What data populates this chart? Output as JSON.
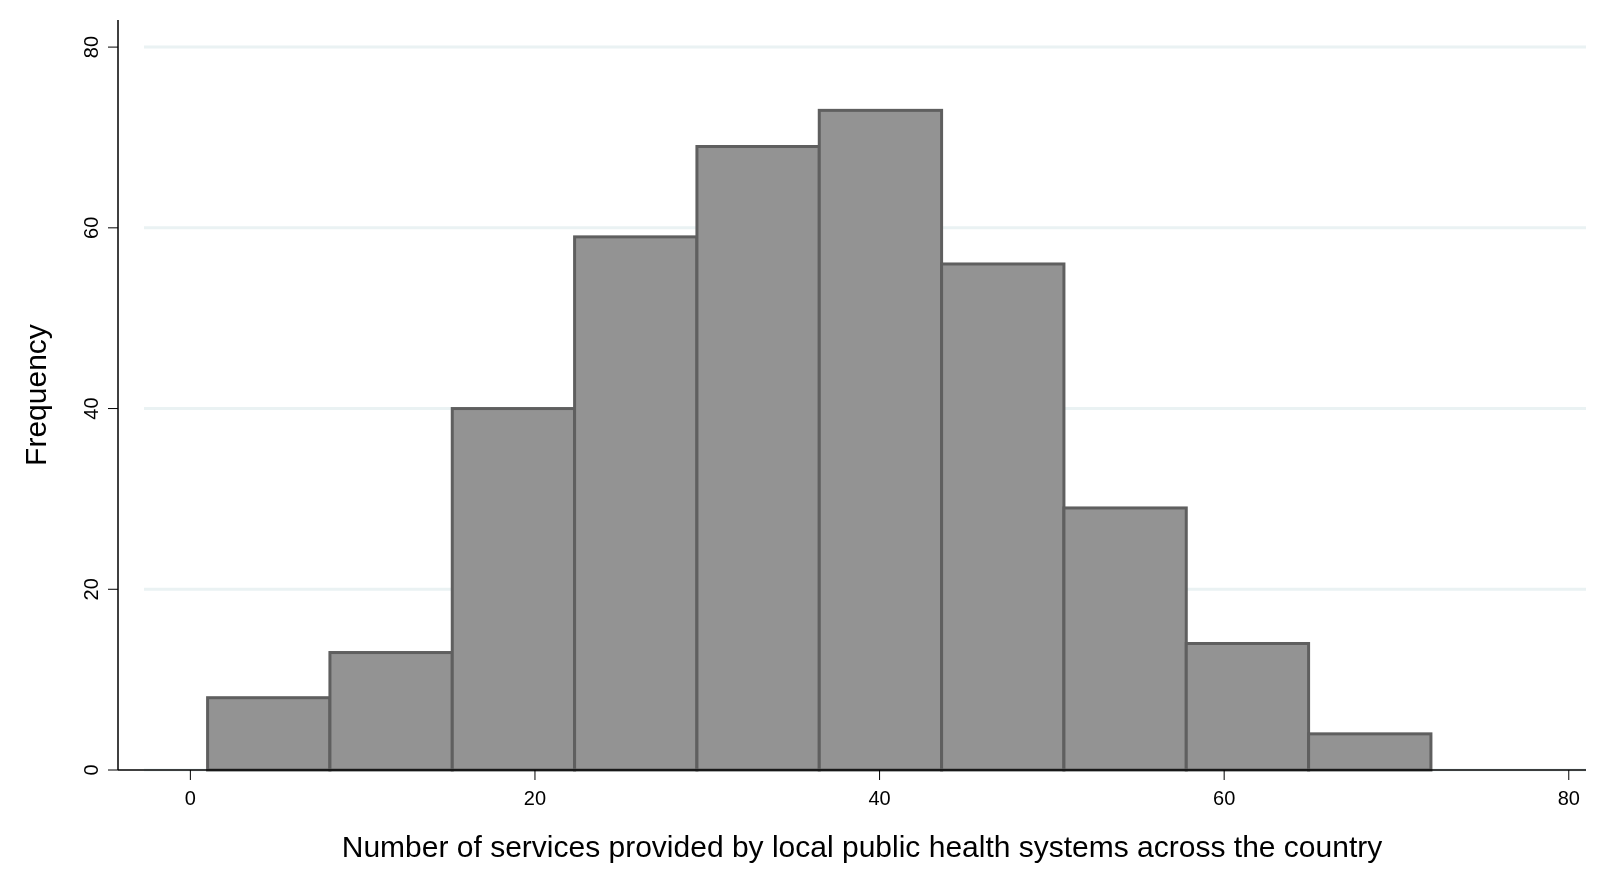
{
  "chart_data": {
    "type": "histogram",
    "xlabel": "Number of services provided by local public health systems across the country",
    "ylabel": "Frequency",
    "bins": [
      1,
      8.1,
      15.2,
      22.3,
      29.4,
      36.5,
      43.6,
      50.7,
      57.8,
      64.9,
      72
    ],
    "values": [
      8,
      13,
      40,
      59,
      69,
      73,
      56,
      29,
      14,
      4
    ],
    "color": "#939393",
    "xlim": [
      -4.2,
      81
    ],
    "ylim": [
      0,
      83
    ],
    "xticks": [
      0,
      20,
      40,
      60,
      80
    ],
    "yticks": [
      0,
      20,
      40,
      60,
      80
    ],
    "grid": "y"
  }
}
